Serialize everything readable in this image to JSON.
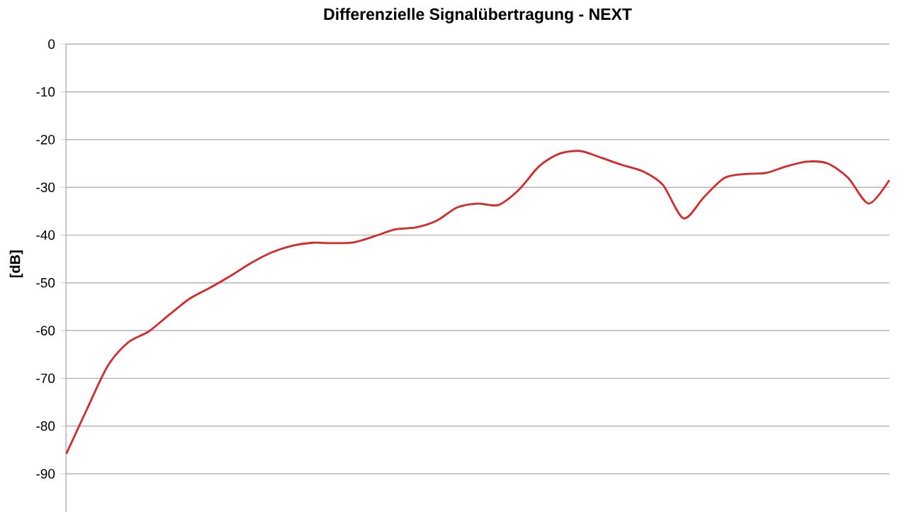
{
  "chart_data": {
    "type": "line",
    "title": "Differenzielle Signalübertragung - NEXT",
    "ylabel": "[dB]",
    "categories": [
      null,
      null,
      null,
      null,
      null,
      null,
      null,
      null,
      null,
      null,
      null,
      null,
      null,
      null,
      null,
      null,
      null,
      null,
      null,
      null,
      null,
      null,
      null,
      null,
      null,
      null,
      null,
      null,
      null,
      null,
      null,
      null,
      null,
      null,
      null,
      null,
      null,
      null,
      null,
      null,
      null
    ],
    "series": [
      {
        "color": "#d42a2a",
        "values": [
          -85.8,
          -76.5,
          -67.5,
          -62.5,
          -60.2,
          -56.7,
          -53.3,
          -51.0,
          -48.5,
          -45.8,
          -43.6,
          -42.2,
          -41.6,
          -41.7,
          -41.5,
          -40.2,
          -38.8,
          -38.4,
          -37.0,
          -34.2,
          -33.4,
          -33.7,
          -30.5,
          -25.5,
          -22.9,
          -22.4,
          -23.8,
          -25.3,
          -26.6,
          -29.5,
          -36.5,
          -32.0,
          -28.0,
          -27.2,
          -27.0,
          -25.6,
          -24.6,
          -25.0,
          -28.0,
          -33.4,
          -28.5
        ]
      }
    ],
    "ylim": [
      -98,
      0
    ],
    "yticks": [
      0,
      -10,
      -20,
      -30,
      -40,
      -50,
      -60,
      -70,
      -80,
      -90
    ],
    "grid": "y",
    "marker": "none"
  }
}
